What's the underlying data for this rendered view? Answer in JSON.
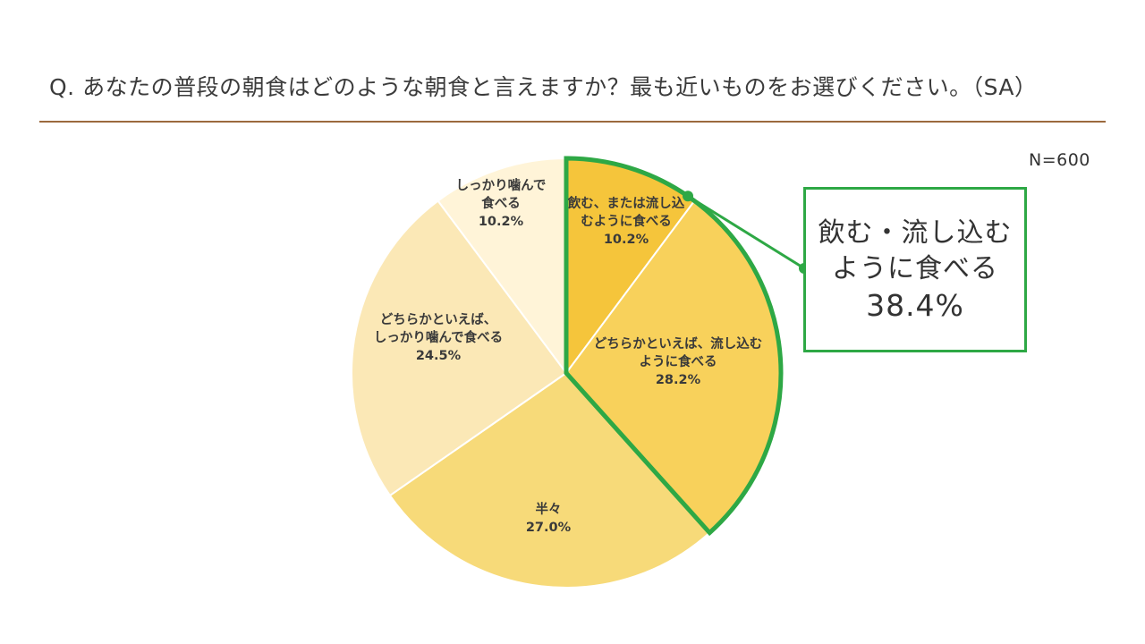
{
  "question": "Q.  あなたの普段の朝食はどのような朝食と言えますか？最も近いものをお選びください。（SA）",
  "sample_size": "N=600",
  "callout": {
    "line1": "飲む・流し込む",
    "line2": "ように食べる",
    "value": "38.4%"
  },
  "colors": {
    "rule": "#9b6a3e",
    "highlight": "#2ea845",
    "slices": [
      "#f5c53b",
      "#f8d15b",
      "#f7da79",
      "#fbe8b6",
      "#fff4d8"
    ]
  },
  "chart_data": {
    "type": "pie",
    "title": "",
    "slices": [
      {
        "label": [
          "飲む、または流し込",
          "むように食べる"
        ],
        "value": 10.2,
        "value_label": "10.2%"
      },
      {
        "label": [
          "どちらかといえば、流し込む",
          "ように食べる"
        ],
        "value": 28.2,
        "value_label": "28.2%"
      },
      {
        "label": [
          "半々"
        ],
        "value": 27.0,
        "value_label": "27.0%"
      },
      {
        "label": [
          "どちらかといえば、",
          "しっかり噛んで食べる"
        ],
        "value": 24.5,
        "value_label": "24.5%"
      },
      {
        "label": [
          "しっかり噛んで",
          "食べる"
        ],
        "value": 10.2,
        "value_label": "10.2%"
      }
    ],
    "start_angle": "12 o'clock",
    "direction": "clockwise",
    "highlighted_group": {
      "slices": [
        0,
        1
      ],
      "total_label": "38.4%"
    }
  }
}
